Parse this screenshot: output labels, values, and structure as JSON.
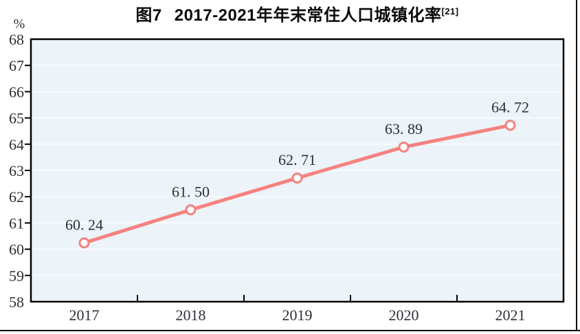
{
  "figure": {
    "title_prefix": "图7",
    "title_main": "2017-2021年年末常住人口城镇化率",
    "title_superscript": "[21]",
    "unit_label": "%"
  },
  "chart_data": {
    "type": "line",
    "title": "图7 2017-2021年年末常住人口城镇化率[21]",
    "xlabel": "",
    "ylabel": "%",
    "categories": [
      "2017",
      "2018",
      "2019",
      "2020",
      "2021"
    ],
    "values": [
      60.24,
      61.5,
      62.71,
      63.89,
      64.72
    ],
    "point_labels": [
      "60. 24",
      "61. 50",
      "62. 71",
      "63. 89",
      "64. 72"
    ],
    "ylim": [
      58,
      68
    ],
    "yticks": [
      58,
      59,
      60,
      61,
      62,
      63,
      64,
      65,
      66,
      67,
      68
    ],
    "grid": "horizontal",
    "legend": "none"
  },
  "colors": {
    "line": "#F5827F",
    "marker_fill": "#FFFFFF",
    "marker_stroke": "#F5827F",
    "plot_background": "#ECF3F9",
    "gridline": "#FAFCFE",
    "axis": "#000000",
    "tick_text": "#2E2E38",
    "title_text": "#0A0A0A"
  }
}
